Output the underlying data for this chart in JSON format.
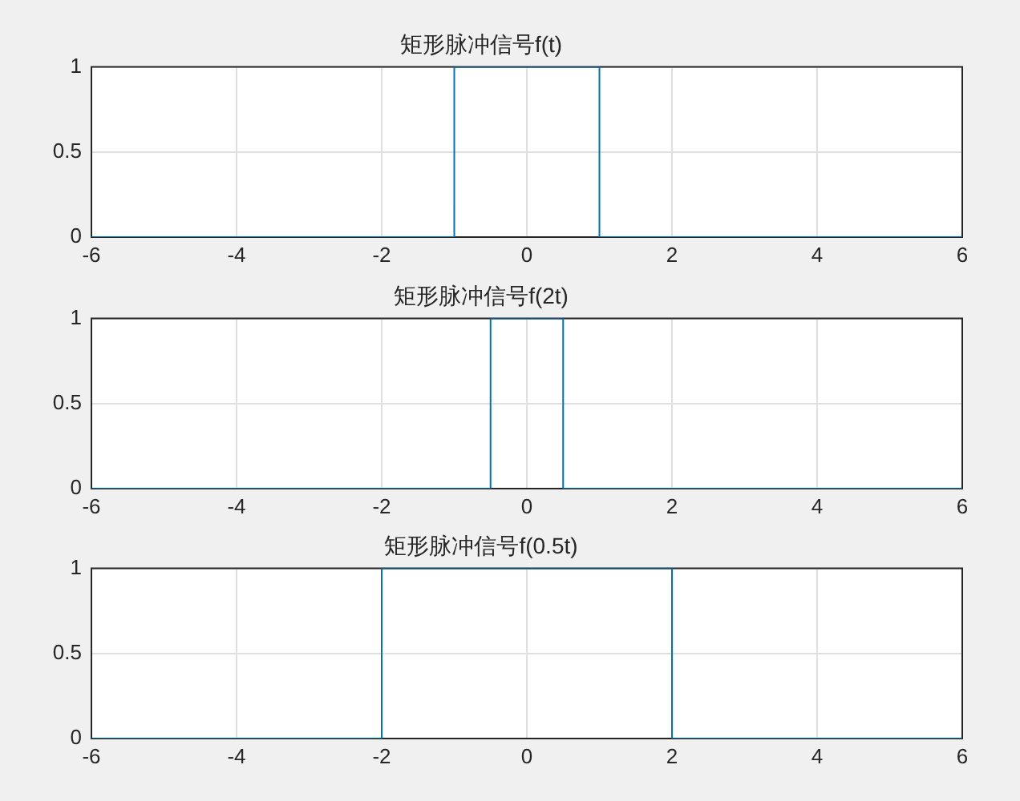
{
  "chart_data": [
    {
      "type": "line",
      "title": "矩形脉冲信号f(t)",
      "series": [
        {
          "color": "#0072bd",
          "x": [
            -6,
            -1,
            -1,
            1,
            1,
            6
          ],
          "values": [
            0,
            0,
            1,
            1,
            0,
            0
          ]
        }
      ],
      "xlim": [
        -6,
        6
      ],
      "xticks": [
        -6,
        -4,
        -2,
        0,
        2,
        4,
        6
      ],
      "ylim": [
        0,
        1
      ],
      "yticks": [
        0,
        0.5,
        1
      ],
      "grid": true,
      "legend": false,
      "marker": "none",
      "line_style": "solid"
    },
    {
      "type": "line",
      "title": "矩形脉冲信号f(2t)",
      "series": [
        {
          "color": "#0072bd",
          "x": [
            -6,
            -0.5,
            -0.5,
            0.5,
            0.5,
            6
          ],
          "values": [
            0,
            0,
            1,
            1,
            0,
            0
          ]
        }
      ],
      "xlim": [
        -6,
        6
      ],
      "xticks": [
        -6,
        -4,
        -2,
        0,
        2,
        4,
        6
      ],
      "ylim": [
        0,
        1
      ],
      "yticks": [
        0,
        0.5,
        1
      ],
      "grid": true,
      "legend": false,
      "marker": "none",
      "line_style": "solid"
    },
    {
      "type": "line",
      "title": "矩形脉冲信号f(0.5t)",
      "series": [
        {
          "color": "#0072bd",
          "x": [
            -6,
            -2,
            -2,
            2,
            2,
            6
          ],
          "values": [
            0,
            0,
            1,
            1,
            0,
            0
          ]
        }
      ],
      "xlim": [
        -6,
        6
      ],
      "xticks": [
        -6,
        -4,
        -2,
        0,
        2,
        4,
        6
      ],
      "ylim": [
        0,
        1
      ],
      "yticks": [
        0,
        0.5,
        1
      ],
      "grid": true,
      "legend": false,
      "marker": "none",
      "line_style": "solid"
    }
  ]
}
